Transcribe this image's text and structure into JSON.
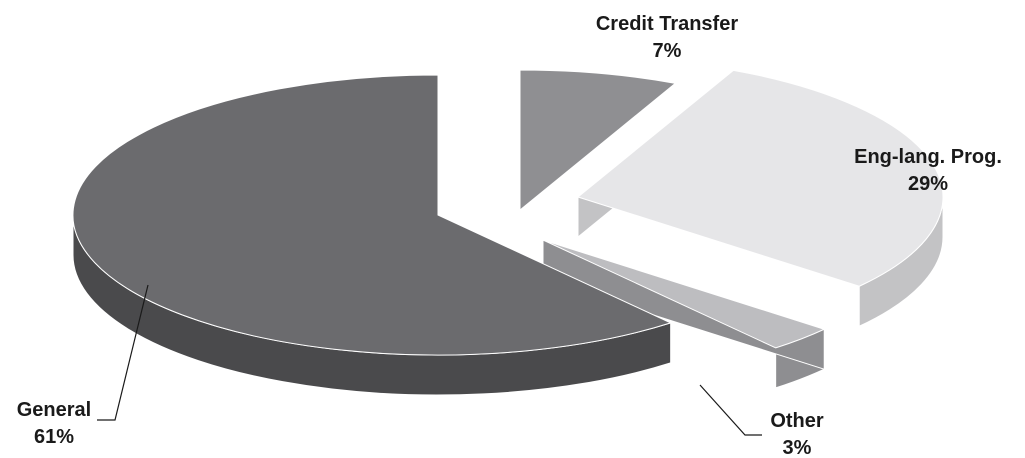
{
  "chart_data": {
    "type": "pie",
    "style": "3d-exploded",
    "title": "",
    "slices": [
      {
        "label": "General",
        "value": 61,
        "value_label": "61%",
        "color": "#6b6b6e",
        "side_color": "#4a4a4c"
      },
      {
        "label": "Credit Transfer",
        "value": 7,
        "value_label": "7%",
        "color": "#8f8f92",
        "side_color": "#5e5e61"
      },
      {
        "label": "Eng-lang. Prog.",
        "value": 29,
        "value_label": "29%",
        "color": "#e6e6e8",
        "side_color": "#c3c3c5"
      },
      {
        "label": "Other",
        "value": 3,
        "value_label": "3%",
        "color": "#bdbdc0",
        "side_color": "#8e8e91"
      }
    ]
  }
}
